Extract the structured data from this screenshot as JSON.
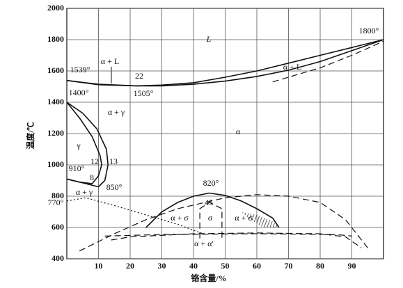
{
  "chart_data": {
    "type": "phase-diagram",
    "x_label": "铬含量/%",
    "y_label": "温度/℃",
    "xlim": [
      0,
      100
    ],
    "ylim": [
      400,
      2000
    ],
    "xticks": [
      10,
      20,
      30,
      40,
      50,
      60,
      70,
      80,
      90
    ],
    "yticks": [
      400,
      600,
      800,
      1000,
      1200,
      1400,
      1600,
      1800,
      2000
    ],
    "grid": true,
    "color": "#111111",
    "curves": [
      {
        "style": "solid",
        "x": [
          0,
          10,
          22,
          30,
          40,
          50,
          60,
          70,
          80,
          90,
          100
        ],
        "y": [
          1539,
          1515,
          1505,
          1510,
          1525,
          1560,
          1600,
          1650,
          1700,
          1750,
          1800
        ]
      },
      {
        "style": "solid",
        "x": [
          0,
          10,
          22,
          30,
          40,
          50,
          60,
          70,
          80,
          90,
          100
        ],
        "y": [
          1539,
          1512,
          1505,
          1505,
          1515,
          1535,
          1565,
          1605,
          1660,
          1730,
          1800
        ]
      },
      {
        "style": "dashed",
        "x": [
          65,
          80,
          90,
          100
        ],
        "y": [
          1530,
          1620,
          1700,
          1790
        ]
      },
      {
        "style": "solid",
        "x": [
          0,
          4,
          8,
          10.5,
          11,
          10,
          8,
          4,
          0
        ],
        "y": [
          1400,
          1300,
          1180,
          1060,
          1000,
          930,
          880,
          890,
          910
        ]
      },
      {
        "style": "solid",
        "x": [
          0,
          5,
          9.5,
          12.5,
          13,
          12,
          10,
          6,
          0
        ],
        "y": [
          1400,
          1330,
          1230,
          1100,
          1000,
          900,
          860,
          880,
          910
        ]
      },
      {
        "style": "solid",
        "x": [
          25,
          30,
          35,
          40,
          45,
          50,
          55,
          60,
          65,
          67
        ],
        "y": [
          600,
          700,
          760,
          800,
          820,
          805,
          770,
          720,
          660,
          600
        ]
      },
      {
        "style": "dashed",
        "x": [
          42,
          42,
          45,
          49,
          49
        ],
        "y": [
          530,
          720,
          760,
          720,
          530
        ]
      },
      {
        "style": "dashed",
        "x": [
          4,
          15,
          25,
          35,
          50,
          60,
          70,
          80,
          88,
          95
        ],
        "y": [
          450,
          560,
          650,
          720,
          790,
          810,
          800,
          760,
          650,
          470
        ]
      },
      {
        "style": "dotted",
        "x": [
          0,
          6,
          15,
          25,
          35,
          43
        ],
        "y": [
          770,
          790,
          740,
          680,
          620,
          560
        ]
      },
      {
        "style": "dashed",
        "x": [
          14,
          20,
          40,
          60,
          80,
          88,
          93
        ],
        "y": [
          520,
          540,
          560,
          565,
          560,
          540,
          470
        ]
      },
      {
        "style": "dashed",
        "x": [
          12,
          30,
          60,
          85,
          90
        ],
        "y": [
          545,
          555,
          560,
          555,
          545
        ]
      },
      {
        "style": "hatch",
        "x": [
          55,
          60,
          65,
          67,
          62,
          58
        ],
        "y": [
          700,
          680,
          640,
          600,
          600,
          650
        ]
      }
    ],
    "annotations": [
      "L",
      "α + L",
      "22",
      "1539°",
      "1505°",
      "1800°",
      "1400°",
      "α + γ",
      "γ",
      "α",
      "12",
      "13",
      "910°",
      "8",
      "850°",
      "α + γ",
      "770°",
      "820°",
      "45",
      "α + σ",
      "σ",
      "α + σ",
      "α + α′",
      "α + L"
    ]
  }
}
